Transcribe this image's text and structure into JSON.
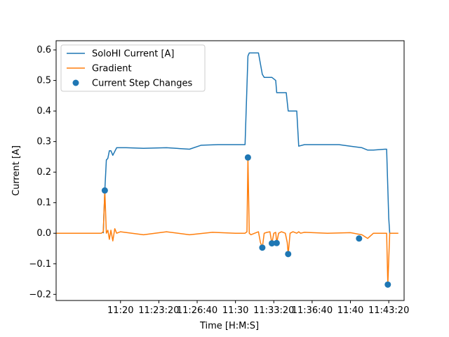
{
  "chart_data": {
    "type": "line",
    "xlabel": "Time [H:M:S]",
    "ylabel": "Current [A]",
    "xlim": [
      "11:14:24",
      "11:44:40"
    ],
    "ylim": [
      -0.22,
      0.63
    ],
    "legend_position": "top-left",
    "grid": false,
    "x_ticks": [
      {
        "label": "11:20",
        "t": "11:20:00"
      },
      {
        "label": "11:23:20",
        "t": "11:23:20"
      },
      {
        "label": "11:26:40",
        "t": "11:26:40"
      },
      {
        "label": "11:30",
        "t": "11:30:00"
      },
      {
        "label": "11:33:20",
        "t": "11:33:20"
      },
      {
        "label": "11:36:40",
        "t": "11:36:40"
      },
      {
        "label": "11:40",
        "t": "11:40:00"
      },
      {
        "label": "11:43:20",
        "t": "11:43:20"
      }
    ],
    "y_ticks": [
      -0.2,
      -0.1,
      0.0,
      0.1,
      0.2,
      0.3,
      0.4,
      0.5,
      0.6
    ],
    "y_tick_labels": [
      "−0.2",
      "−0.1",
      "0.0",
      "0.1",
      "0.2",
      "0.3",
      "0.4",
      "0.5",
      "0.6"
    ],
    "series": [
      {
        "name": "SoloHI Current [A]",
        "kind": "line",
        "color": "#1f77b4",
        "x": [
          "11:18:30",
          "11:18:38",
          "11:18:46",
          "11:18:54",
          "11:19:02",
          "11:19:10",
          "11:19:20",
          "11:19:40",
          "11:20:30",
          "11:22:00",
          "11:24:00",
          "11:26:00",
          "11:27:00",
          "11:28:30",
          "11:30:00",
          "11:30:50",
          "11:31:05",
          "11:31:12",
          "11:31:30",
          "11:32:00",
          "11:32:20",
          "11:32:30",
          "11:33:10",
          "11:33:30",
          "11:33:35",
          "11:34:25",
          "11:34:35",
          "11:35:20",
          "11:35:30",
          "11:36:00",
          "11:37:00",
          "11:39:00",
          "11:40:00",
          "11:41:00",
          "11:41:30",
          "11:42:00",
          "11:43:00",
          "11:43:09",
          "11:43:20",
          "11:43:25",
          "11:43:30"
        ],
        "y": [
          0.0,
          0.14,
          0.24,
          0.245,
          0.27,
          0.27,
          0.255,
          0.28,
          0.28,
          0.278,
          0.28,
          0.275,
          0.288,
          0.29,
          0.29,
          0.29,
          0.58,
          0.59,
          0.59,
          0.59,
          0.52,
          0.51,
          0.51,
          0.5,
          0.46,
          0.46,
          0.4,
          0.4,
          0.285,
          0.29,
          0.29,
          0.29,
          0.285,
          0.28,
          0.272,
          0.272,
          0.275,
          0.275,
          0.05,
          0.0,
          0.0
        ]
      },
      {
        "name": "Gradient",
        "kind": "line",
        "color": "#ff7f0e",
        "x": [
          "11:14:24",
          "11:18:20",
          "11:18:30",
          "11:18:38",
          "11:18:46",
          "11:18:54",
          "11:19:02",
          "11:19:10",
          "11:19:20",
          "11:19:30",
          "11:19:40",
          "11:20:00",
          "11:22:00",
          "11:24:00",
          "11:26:00",
          "11:28:00",
          "11:30:00",
          "11:30:50",
          "11:31:00",
          "11:31:05",
          "11:31:12",
          "11:31:20",
          "11:31:40",
          "11:32:00",
          "11:32:10",
          "11:32:20",
          "11:32:30",
          "11:32:45",
          "11:33:00",
          "11:33:10",
          "11:33:20",
          "11:33:30",
          "11:33:35",
          "11:33:45",
          "11:34:00",
          "11:34:20",
          "11:34:30",
          "11:34:35",
          "11:34:45",
          "11:35:00",
          "11:35:20",
          "11:35:30",
          "11:35:40",
          "11:36:00",
          "11:38:00",
          "11:40:00",
          "11:41:00",
          "11:41:30",
          "11:42:00",
          "11:43:00",
          "11:43:09",
          "11:43:15",
          "11:43:25",
          "11:43:35",
          "11:44:10"
        ],
        "y": [
          0.0,
          0.0,
          0.005,
          0.14,
          0.0,
          0.01,
          -0.02,
          0.01,
          -0.025,
          0.015,
          0.0,
          0.005,
          -0.005,
          0.005,
          -0.005,
          0.003,
          0.0,
          0.0,
          0.005,
          0.25,
          0.0,
          -0.005,
          0.0,
          0.005,
          -0.03,
          -0.047,
          0.0,
          0.003,
          0.005,
          -0.033,
          0.0,
          0.003,
          -0.032,
          0.0,
          0.005,
          0.0,
          -0.03,
          -0.068,
          0.0,
          0.005,
          0.0,
          0.005,
          0.0,
          0.003,
          0.0,
          0.002,
          -0.005,
          -0.017,
          0.0,
          0.0,
          0.0,
          -0.168,
          0.0,
          0.0,
          0.0
        ]
      },
      {
        "name": "Current Step Changes",
        "kind": "scatter",
        "color": "#1f77b4",
        "x": [
          "11:18:38",
          "11:31:05",
          "11:32:20",
          "11:33:10",
          "11:33:35",
          "11:34:35",
          "11:40:45",
          "11:43:15"
        ],
        "y": [
          0.14,
          0.248,
          -0.047,
          -0.033,
          -0.032,
          -0.068,
          -0.017,
          -0.168
        ]
      }
    ]
  }
}
